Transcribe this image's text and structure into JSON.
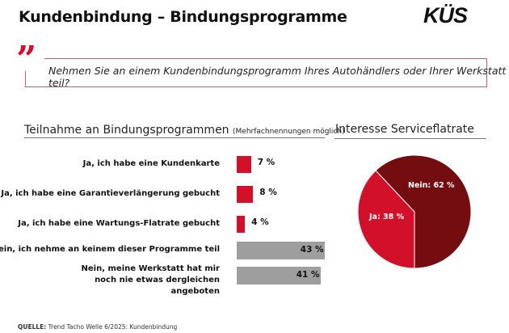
{
  "header": {
    "title": "Kundenbindung – Bindungsprogramme",
    "logo": "KÜS"
  },
  "question": "Nehmen Sie an einem Kundenbindungsprogramm Ihres Autohändlers oder Ihrer Werkstatt teil?",
  "source": {
    "label": "QUELLE:",
    "text": "Trend Tacho Welle 6/2025: Kundenbindung"
  },
  "colors": {
    "red": "#d3102a",
    "dark_red": "#730d10",
    "gray": "#9e9e9e"
  },
  "chart_data": [
    {
      "type": "bar",
      "orientation": "horizontal",
      "title": "Teilnahme an Bindungsprogrammen",
      "subtitle": "(Mehrfachnennungen möglich)",
      "categories": [
        "Ja, ich habe eine Kundenkarte",
        "Ja, ich habe eine Garantieverlängerung gebucht",
        "Ja, ich habe eine Wartungs-Flatrate gebucht",
        "Nein, ich nehme an keinem dieser Programme teil",
        "Nein, meine Werkstatt hat mir noch nie etwas dergleichen angeboten"
      ],
      "values": [
        7,
        8,
        4,
        43,
        41
      ],
      "labels": [
        "7 %",
        "8 %",
        "4 %",
        "43 %",
        "41 %"
      ],
      "bar_colors": [
        "#d3102a",
        "#d3102a",
        "#d3102a",
        "#9e9e9e",
        "#9e9e9e"
      ],
      "unit": "%"
    },
    {
      "type": "pie",
      "title": "Interesse Serviceflatrate",
      "slices": [
        {
          "name": "Ja",
          "value": 38,
          "label": "Ja: 38 %",
          "color": "#d3102a"
        },
        {
          "name": "Nein",
          "value": 62,
          "label": "Nein: 62 %",
          "color": "#730d10"
        }
      ]
    }
  ]
}
